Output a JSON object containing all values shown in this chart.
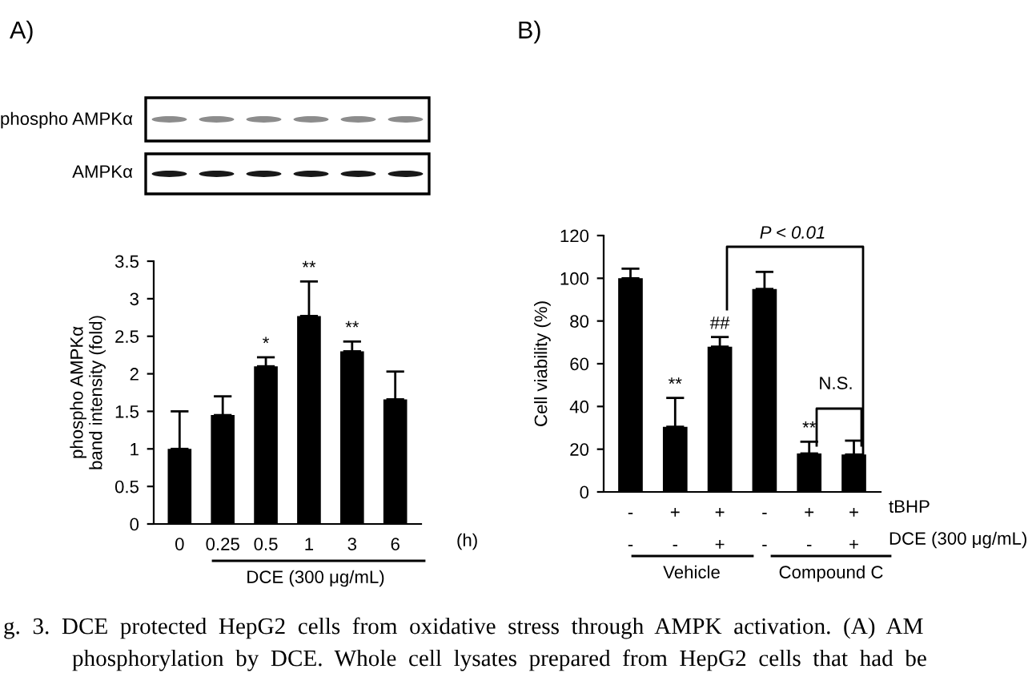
{
  "chart_data": [
    {
      "type": "bar",
      "ylabel": "phospho AMPKα\nband intensity (fold)",
      "categories": [
        "0",
        "0.25",
        "0.5",
        "1",
        "3",
        "6"
      ],
      "values": [
        1.0,
        1.45,
        2.1,
        2.77,
        2.3,
        1.66
      ],
      "color": "#000000",
      "errors": [
        [
          1.0,
          1.5
        ],
        [
          1.45,
          1.7
        ],
        [
          2.1,
          2.22
        ],
        [
          2.77,
          3.23
        ],
        [
          2.3,
          2.43
        ],
        [
          1.66,
          2.03
        ]
      ],
      "value_labels": [
        null,
        null,
        "*",
        "**",
        "**",
        null
      ],
      "ylim": [
        0,
        3.5
      ],
      "yticks": [
        0,
        0.5,
        1,
        1.5,
        2,
        2.5,
        3,
        3.5
      ],
      "grid": false,
      "legend": false,
      "annotations": [
        "A)",
        "phospho AMPKα",
        "AMPKα",
        "(h)",
        "DCE (300 μg/mL)",
        "g.  3.  DCE  protected  HepG2  cells  from  oxidative  stress  through  AMPK  activation.  (A)  AM",
        "phosphorylation  by  DCE.  Whole  cell  lysates  prepared  from  HepG2  cells  that  had  be"
      ]
    },
    {
      "type": "bar",
      "ylabel": "Cell viability (%)",
      "categories": [
        "-\n-",
        "+\n-",
        "+\n+",
        "-\n-",
        "+\n-",
        "+\n+"
      ],
      "values": [
        100,
        30.5,
        68,
        95,
        18,
        17.5
      ],
      "color": "#000000",
      "errors": [
        [
          100,
          104.5
        ],
        [
          30.5,
          44
        ],
        [
          68,
          72.5
        ],
        [
          95,
          103
        ],
        [
          18,
          23.5
        ],
        [
          17.5,
          24
        ]
      ],
      "value_labels": [
        null,
        "**",
        "##",
        null,
        "**",
        null
      ],
      "ylim": [
        0,
        120
      ],
      "yticks": [
        0,
        20,
        40,
        60,
        80,
        100,
        120
      ],
      "grid": false,
      "legend": false,
      "annotations": [
        "B)",
        "tBHP",
        "DCE (300 μg/mL)",
        "Vehicle",
        "Compound C",
        "P < 0.01",
        "N.S."
      ]
    }
  ]
}
